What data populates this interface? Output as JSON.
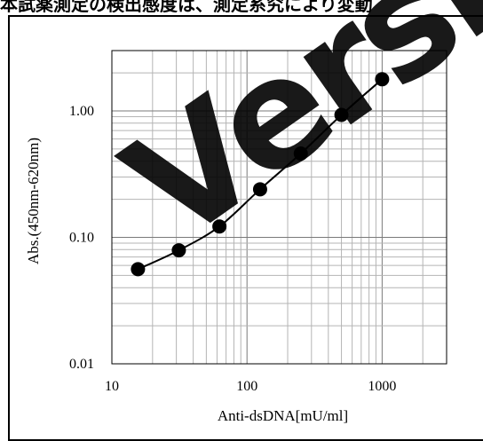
{
  "caption": "本試薬測定の検出感度は、測定系究により変動",
  "watermark": "Versi",
  "chart_data": {
    "type": "scatter",
    "xlabel": "Anti-dsDNA[mU/ml]",
    "ylabel": "Abs.(450nm-620nm)",
    "x_scale": "log",
    "y_scale": "log",
    "xlim": [
      10,
      3000
    ],
    "ylim": [
      0.01,
      3
    ],
    "x_ticks": [
      {
        "value": 10,
        "label": "10"
      },
      {
        "value": 100,
        "label": "100"
      },
      {
        "value": 1000,
        "label": "1000"
      }
    ],
    "y_ticks": [
      {
        "value": 0.01,
        "label": "0.01"
      },
      {
        "value": 0.1,
        "label": "0.10"
      },
      {
        "value": 1,
        "label": "1.00"
      }
    ],
    "grid": true,
    "fit_line": "smooth curve through points",
    "series": [
      {
        "x": [
          15.6,
          31.3,
          62.5,
          125,
          250,
          500,
          1000
        ],
        "y": [
          0.056,
          0.079,
          0.122,
          0.24,
          0.46,
          0.93,
          1.78
        ]
      }
    ],
    "colors": {
      "marker": "#000000",
      "grid": "#b4b4b4",
      "major_grid": "#7a7a7a"
    }
  }
}
